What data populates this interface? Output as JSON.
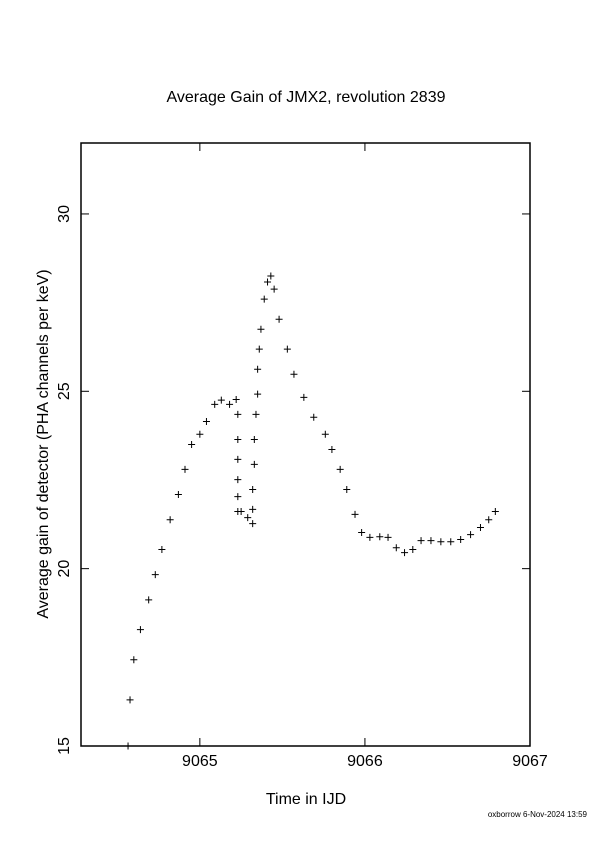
{
  "chart_data": {
    "type": "scatter",
    "title": "Average Gain of JMX2, revolution 2839",
    "x_label": "Time in IJD",
    "y_label": "Average gain of detector (PHA channels per keV)",
    "footer": "oxborrow  6-Nov-2024 13:59",
    "marker": "+",
    "color": "#000000",
    "xlim": [
      9064.28,
      9067
    ],
    "xticks": [
      9065,
      9066,
      9067
    ],
    "ylim": [
      15,
      32
    ],
    "yticks": [
      15,
      20,
      25,
      30
    ],
    "x": [
      9064.565,
      9064.577,
      9064.6,
      9064.64,
      9064.69,
      9064.73,
      9064.77,
      9064.82,
      9064.87,
      9064.91,
      9064.95,
      9065.0,
      9065.04,
      9065.09,
      9065.13,
      9065.18,
      9065.22,
      9065.23,
      9065.23,
      9065.23,
      9065.23,
      9065.23,
      9065.23,
      9065.25,
      9065.29,
      9065.32,
      9065.32,
      9065.32,
      9065.33,
      9065.33,
      9065.34,
      9065.35,
      9065.35,
      9065.36,
      9065.37,
      9065.39,
      9065.41,
      9065.43,
      9065.45,
      9065.48,
      9065.53,
      9065.57,
      9065.63,
      9065.69,
      9065.76,
      9065.8,
      9065.85,
      9065.89,
      9065.94,
      9065.98,
      9066.03,
      9066.09,
      9066.14,
      9066.19,
      9066.24,
      9066.29,
      9066.34,
      9066.4,
      9066.46,
      9066.52,
      9066.58,
      9066.64,
      9066.7,
      9066.75,
      9066.79
    ],
    "y": [
      15.0,
      16.3,
      17.43,
      18.28,
      19.12,
      19.83,
      20.54,
      21.38,
      22.09,
      22.8,
      23.5,
      23.79,
      24.15,
      24.63,
      24.75,
      24.63,
      24.77,
      24.35,
      23.64,
      23.08,
      22.51,
      22.03,
      21.61,
      21.61,
      21.44,
      21.27,
      21.67,
      22.23,
      22.94,
      23.64,
      24.35,
      24.92,
      25.62,
      26.19,
      26.75,
      27.6,
      28.08,
      28.25,
      27.88,
      27.03,
      26.19,
      25.48,
      24.83,
      24.27,
      23.79,
      23.36,
      22.8,
      22.23,
      21.53,
      21.02,
      20.88,
      20.9,
      20.88,
      20.59,
      20.45,
      20.54,
      20.79,
      20.79,
      20.76,
      20.76,
      20.82,
      20.96,
      21.16,
      21.38,
      21.61
    ]
  }
}
